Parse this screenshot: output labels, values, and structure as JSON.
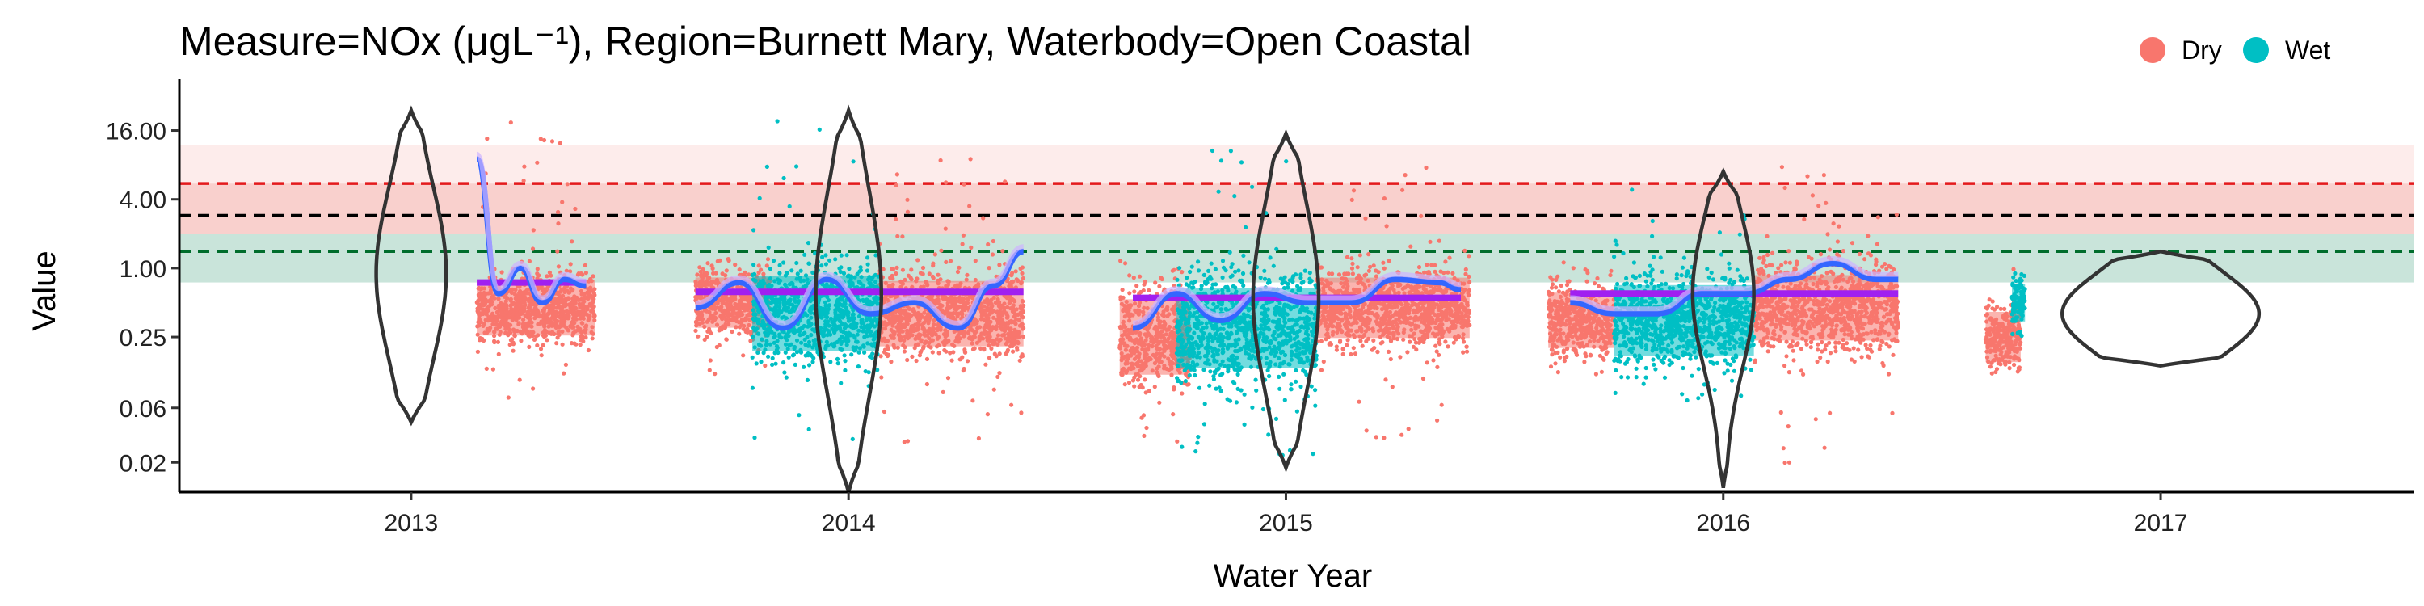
{
  "chart_data": {
    "type": "scatter",
    "title": "Measure=NOx (μgL⁻¹), Region=Burnett Mary, Waterbody=Open Coastal",
    "xlabel": "Water Year",
    "ylabel": "Value",
    "y_scale": "log",
    "y_ticks": [
      {
        "value": 0.02,
        "label": "0.02"
      },
      {
        "value": 0.06,
        "label": "0.06"
      },
      {
        "value": 0.25,
        "label": "0.25"
      },
      {
        "value": 1.0,
        "label": "1.00"
      },
      {
        "value": 4.0,
        "label": "4.00"
      },
      {
        "value": 16.0,
        "label": "16.00"
      }
    ],
    "x_ticks": [
      {
        "value": 2013,
        "label": "2013"
      },
      {
        "value": 2014,
        "label": "2014"
      },
      {
        "value": 2015,
        "label": "2015"
      },
      {
        "value": 2016,
        "label": "2016"
      },
      {
        "value": 2017,
        "label": "2017"
      }
    ],
    "xlim": [
      2012.47,
      2017.58
    ],
    "ylim": [
      0.011,
      45
    ],
    "grid": false,
    "legend": {
      "position": "top-right",
      "items": [
        {
          "name": "Dry",
          "color": "#F8766D"
        },
        {
          "name": "Wet",
          "color": "#00BFC4"
        }
      ]
    },
    "reference_bands": [
      {
        "ymin": 0.75,
        "ymax": 2.0,
        "color": "#A5D2C2"
      },
      {
        "ymin": 2.0,
        "ymax": 5.5,
        "color": "#F5B0AC"
      },
      {
        "ymin": 5.5,
        "ymax": 12.0,
        "color": "#FCE0DE"
      }
    ],
    "reference_lines": [
      {
        "y": 5.5,
        "color": "#E41A1C"
      },
      {
        "y": 2.9,
        "color": "#000000"
      },
      {
        "y": 1.4,
        "color": "#006D2C"
      }
    ],
    "violins": [
      {
        "x": 2013,
        "median": 0.9,
        "min": 0.045,
        "max": 24,
        "width": 0.16
      },
      {
        "x": 2014,
        "median": 0.6,
        "min": 0.011,
        "max": 24,
        "width": 0.15
      },
      {
        "x": 2015,
        "median": 0.55,
        "min": 0.018,
        "max": 15,
        "width": 0.15
      },
      {
        "x": 2016,
        "median": 0.6,
        "min": 0.012,
        "max": 7,
        "width": 0.14
      },
      {
        "x": 2017,
        "median": 0.4,
        "min": 0.14,
        "max": 1.4,
        "width": 0.45
      }
    ],
    "series": [
      {
        "name": "Dry",
        "color": "#F8766D",
        "segments": [
          {
            "x0": 2013.15,
            "x1": 2013.42,
            "center": 0.45,
            "spread": 0.22,
            "ymin": 0.05,
            "ymax": 24
          },
          {
            "x0": 2013.65,
            "x1": 2013.82,
            "center": 0.5,
            "spread": 0.2,
            "ymin": 0.1,
            "ymax": 1.2
          },
          {
            "x0": 2014.07,
            "x1": 2014.4,
            "center": 0.4,
            "spread": 0.26,
            "ymin": 0.03,
            "ymax": 9
          },
          {
            "x0": 2014.62,
            "x1": 2014.78,
            "center": 0.25,
            "spread": 0.3,
            "ymin": 0.03,
            "ymax": 1.3
          },
          {
            "x0": 2015.07,
            "x1": 2015.42,
            "center": 0.45,
            "spread": 0.24,
            "ymin": 0.03,
            "ymax": 8
          },
          {
            "x0": 2015.6,
            "x1": 2015.75,
            "center": 0.35,
            "spread": 0.22,
            "ymin": 0.08,
            "ymax": 1.2
          },
          {
            "x0": 2016.07,
            "x1": 2016.4,
            "center": 0.45,
            "spread": 0.26,
            "ymin": 0.015,
            "ymax": 10
          },
          {
            "x0": 2016.6,
            "x1": 2016.68,
            "center": 0.25,
            "spread": 0.2,
            "ymin": 0.12,
            "ymax": 1.1
          }
        ]
      },
      {
        "name": "Wet",
        "color": "#00BFC4",
        "segments": [
          {
            "x0": 2013.78,
            "x1": 2014.07,
            "center": 0.4,
            "spread": 0.3,
            "ymin": 0.03,
            "ymax": 24
          },
          {
            "x0": 2014.75,
            "x1": 2015.07,
            "center": 0.3,
            "spread": 0.32,
            "ymin": 0.02,
            "ymax": 13
          },
          {
            "x0": 2015.75,
            "x1": 2016.07,
            "center": 0.35,
            "spread": 0.28,
            "ymin": 0.05,
            "ymax": 5
          },
          {
            "x0": 2016.66,
            "x1": 2016.69,
            "center": 0.5,
            "spread": 0.15,
            "ymin": 0.25,
            "ymax": 0.9
          }
        ]
      }
    ],
    "trend_lines": [
      {
        "kind": "mean",
        "color": "#A020F0",
        "segments": [
          {
            "x0": 2013.15,
            "x1": 2013.4,
            "y": 0.75
          },
          {
            "x0": 2013.65,
            "x1": 2014.4,
            "y": 0.62
          },
          {
            "x0": 2014.65,
            "x1": 2015.4,
            "y": 0.55
          },
          {
            "x0": 2015.65,
            "x1": 2016.4,
            "y": 0.6
          }
        ]
      },
      {
        "kind": "smooth",
        "color": "#3366FF",
        "points": [
          [
            2013.15,
            9
          ],
          [
            2013.2,
            0.6
          ],
          [
            2013.25,
            1.0
          ],
          [
            2013.3,
            0.5
          ],
          [
            2013.35,
            0.8
          ],
          [
            2013.4,
            0.7
          ],
          [
            2013.65,
            0.45
          ],
          [
            2013.75,
            0.75
          ],
          [
            2013.85,
            0.3
          ],
          [
            2013.95,
            0.8
          ],
          [
            2014.05,
            0.4
          ],
          [
            2014.15,
            0.5
          ],
          [
            2014.25,
            0.3
          ],
          [
            2014.33,
            0.7
          ],
          [
            2014.4,
            1.4
          ],
          [
            2014.65,
            0.3
          ],
          [
            2014.75,
            0.6
          ],
          [
            2014.85,
            0.35
          ],
          [
            2014.95,
            0.6
          ],
          [
            2015.05,
            0.5
          ],
          [
            2015.15,
            0.5
          ],
          [
            2015.25,
            0.8
          ],
          [
            2015.35,
            0.75
          ],
          [
            2015.4,
            0.65
          ],
          [
            2015.65,
            0.5
          ],
          [
            2015.75,
            0.4
          ],
          [
            2015.85,
            0.4
          ],
          [
            2015.95,
            0.6
          ],
          [
            2016.05,
            0.6
          ],
          [
            2016.15,
            0.8
          ],
          [
            2016.25,
            1.1
          ],
          [
            2016.35,
            0.8
          ],
          [
            2016.4,
            0.8
          ]
        ]
      }
    ]
  }
}
